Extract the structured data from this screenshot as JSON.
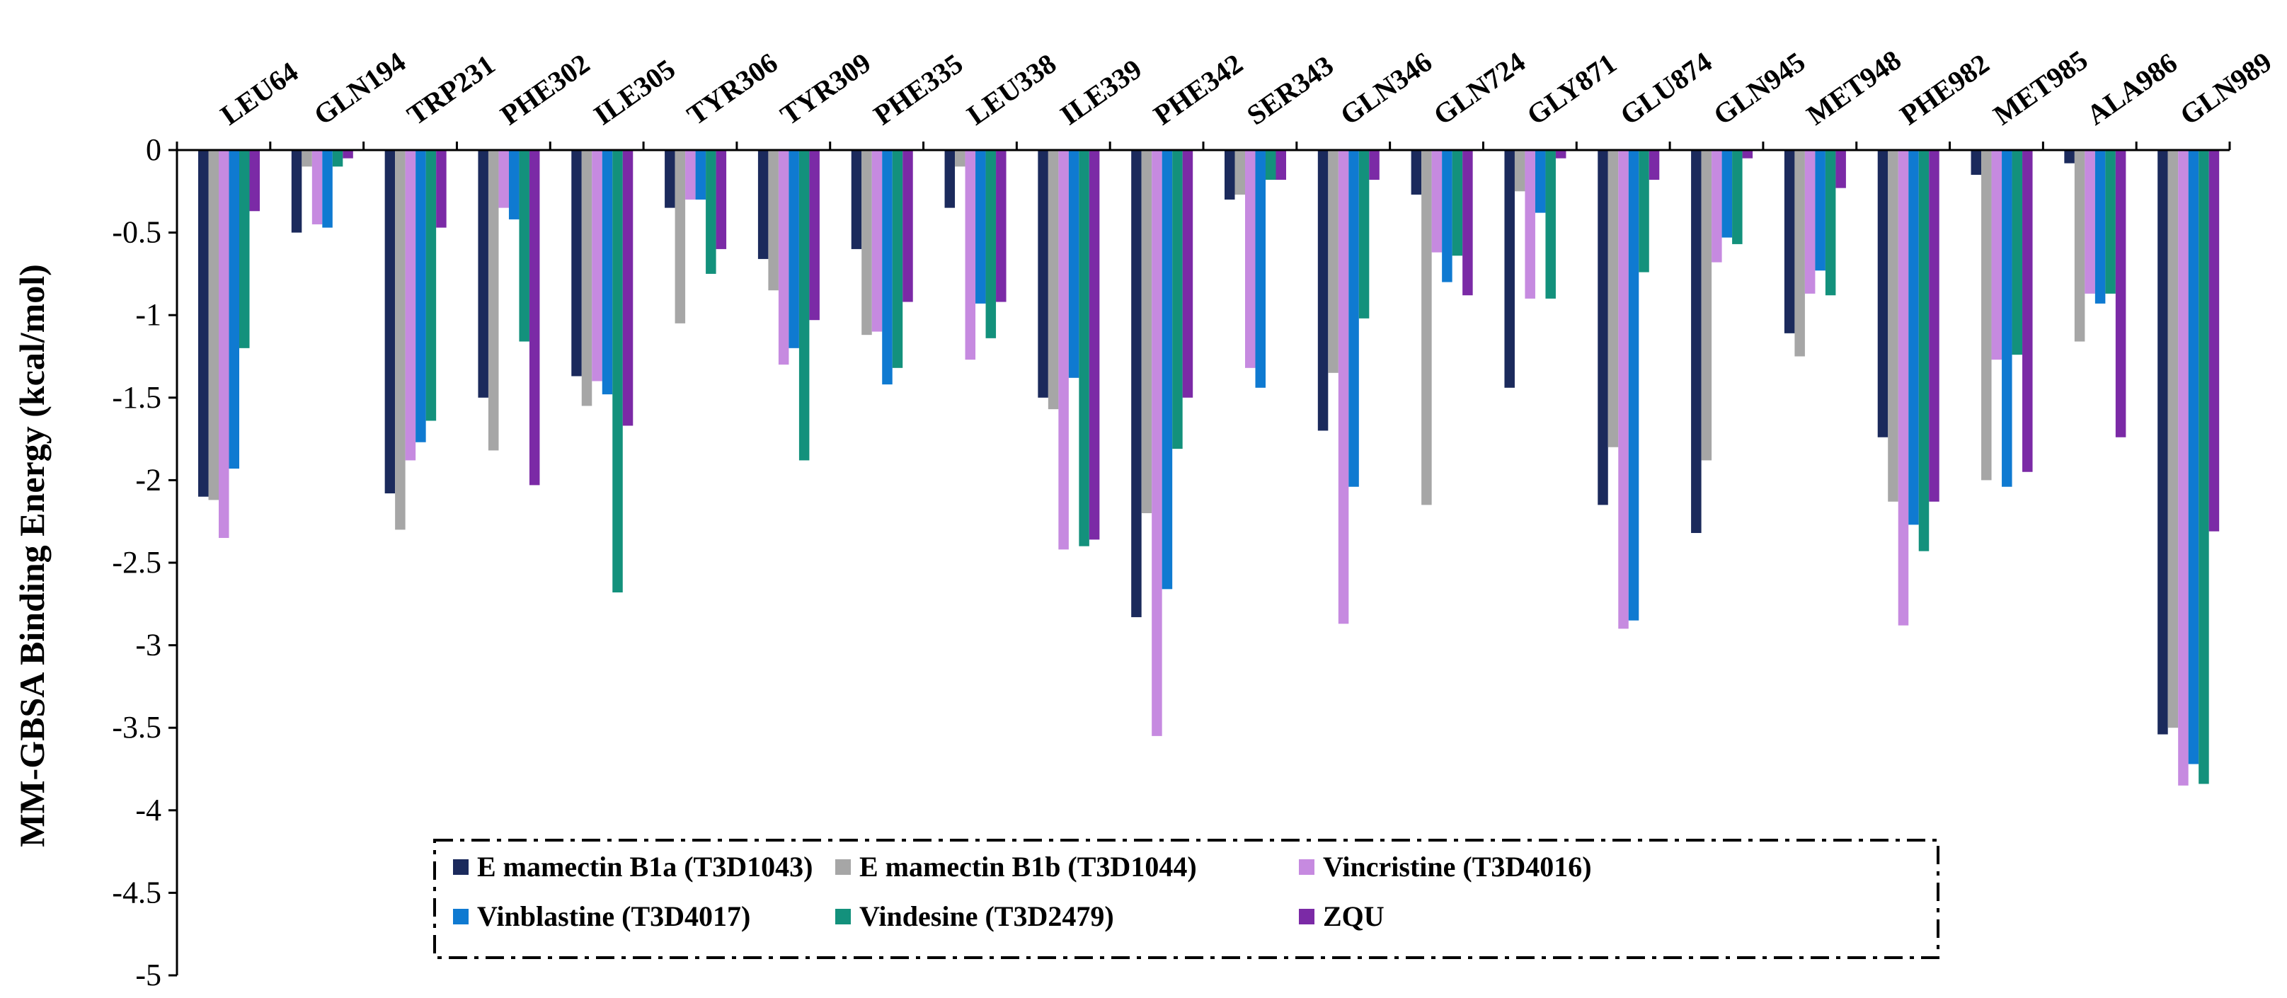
{
  "chart_data": {
    "type": "bar",
    "title": "",
    "xlabel": "",
    "ylabel": "MM-GBSA Binding Energy (kcal/mol)",
    "ylim": [
      -5,
      0
    ],
    "yticks": [
      0,
      -0.5,
      -1,
      -1.5,
      -2,
      -2.5,
      -3,
      -3.5,
      -4,
      -4.5,
      -5
    ],
    "ytick_labels": [
      "0",
      "-0.5",
      "-1",
      "-1.5",
      "-2",
      "-2.5",
      "-3",
      "-3.5",
      "-4",
      "-4.5",
      "-5"
    ],
    "grid": false,
    "legend_position": "bottom-center",
    "categories": [
      "LEU64",
      "GLN194",
      "TRP231",
      "PHE302",
      "ILE305",
      "TYR306",
      "TYR309",
      "PHE335",
      "LEU338",
      "ILE339",
      "PHE342",
      "SER343",
      "GLN346",
      "GLN724",
      "GLY871",
      "GLU874",
      "GLN945",
      "MET948",
      "PHE982",
      "MET985",
      "ALA986",
      "GLN989"
    ],
    "series": [
      {
        "name": "E mamectin B1a (T3D1043)",
        "color": "#1b2a5c",
        "values": [
          -2.1,
          -0.5,
          -2.08,
          -1.5,
          -1.37,
          -0.35,
          -0.66,
          -0.6,
          -0.35,
          -1.5,
          -2.83,
          -0.3,
          -1.7,
          -0.27,
          -1.44,
          -2.15,
          -2.32,
          -1.11,
          -1.74,
          -0.15,
          -0.08,
          -3.54
        ]
      },
      {
        "name": "E mamectin B1b (T3D1044)",
        "color": "#a6a6a6",
        "values": [
          -2.12,
          -0.1,
          -2.3,
          -1.82,
          -1.55,
          -1.05,
          -0.85,
          -1.12,
          -0.1,
          -1.57,
          -2.2,
          -0.27,
          -1.35,
          -2.15,
          -0.25,
          -1.8,
          -1.88,
          -1.25,
          -2.13,
          -2.0,
          -1.16,
          -3.5
        ]
      },
      {
        "name": "Vincristine (T3D4016)",
        "color": "#c68ae0",
        "values": [
          -2.35,
          -0.45,
          -1.88,
          -0.35,
          -1.4,
          -0.3,
          -1.3,
          -1.1,
          -1.27,
          -2.42,
          -3.55,
          -1.32,
          -2.87,
          -0.62,
          -0.9,
          -2.9,
          -0.68,
          -0.87,
          -2.88,
          -1.27,
          -0.87,
          -3.85
        ]
      },
      {
        "name": "Vinblastine (T3D4017)",
        "color": "#0f7ad1",
        "values": [
          -1.93,
          -0.47,
          -1.77,
          -0.42,
          -1.48,
          -0.3,
          -1.2,
          -1.42,
          -0.93,
          -1.38,
          -2.66,
          -1.44,
          -2.04,
          -0.8,
          -0.38,
          -2.85,
          -0.53,
          -0.73,
          -2.27,
          -2.04,
          -0.93,
          -3.72
        ]
      },
      {
        "name": "Vindesine (T3D2479)",
        "color": "#13917c",
        "values": [
          -1.2,
          -0.1,
          -1.64,
          -1.16,
          -2.68,
          -0.75,
          -1.88,
          -1.32,
          -1.14,
          -2.4,
          -1.81,
          -0.18,
          -1.02,
          -0.64,
          -0.9,
          -0.74,
          -0.57,
          -0.88,
          -2.43,
          -1.24,
          -0.87,
          -3.84
        ]
      },
      {
        "name": "ZQU",
        "color": "#7b2aa6",
        "values": [
          -0.37,
          -0.05,
          -0.47,
          -2.03,
          -1.67,
          -0.6,
          -1.03,
          -0.92,
          -0.92,
          -2.36,
          -1.5,
          -0.18,
          -0.18,
          -0.88,
          -0.05,
          -0.18,
          -0.05,
          -0.23,
          -2.13,
          -1.95,
          -1.74,
          -2.31
        ]
      }
    ]
  }
}
